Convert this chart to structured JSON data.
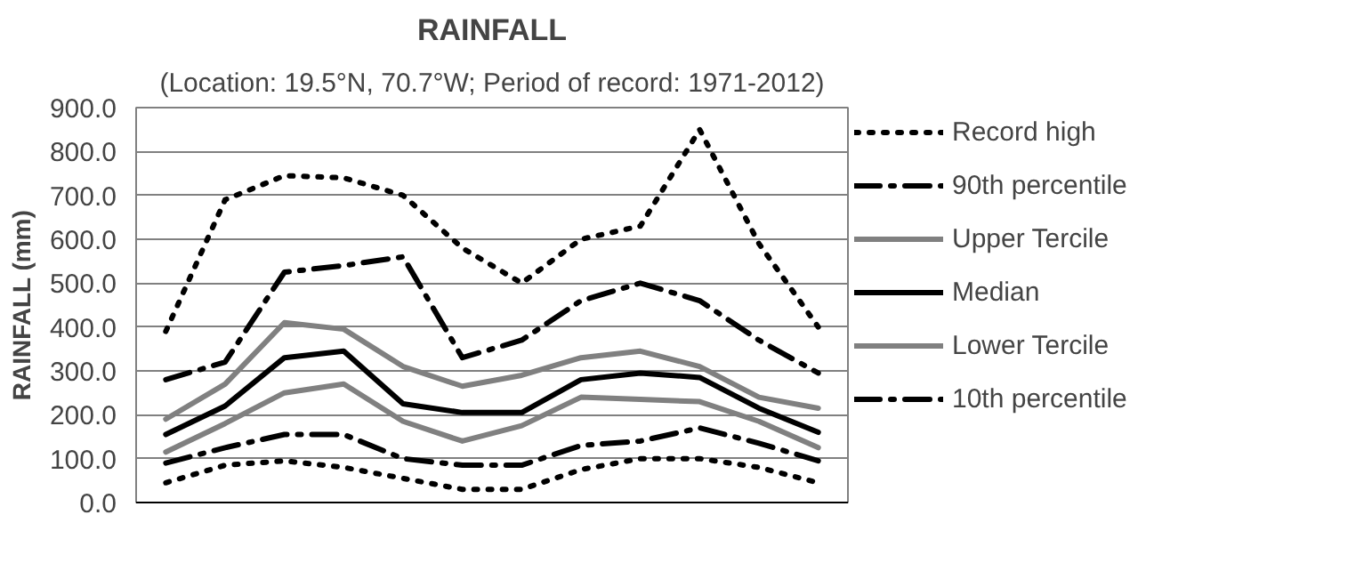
{
  "chart_data": {
    "type": "line",
    "title": "RAINFALL",
    "subtitle": "(Location: 19.5°N, 70.7°W; Period of record: 1971-2012)",
    "ylabel": "RAINFALL (mm)",
    "categories": [
      null,
      null,
      null,
      null,
      null,
      null,
      null,
      null,
      null,
      null,
      null,
      null
    ],
    "ylim": [
      0,
      900
    ],
    "yticks": [
      {
        "value": 0,
        "label": "0.0"
      },
      {
        "value": 100,
        "label": "100.0"
      },
      {
        "value": 200,
        "label": "200.0"
      },
      {
        "value": 300,
        "label": "300.0"
      },
      {
        "value": 400,
        "label": "400.0"
      },
      {
        "value": 500,
        "label": "500.0"
      },
      {
        "value": 600,
        "label": "600.0"
      },
      {
        "value": 700,
        "label": "700.0"
      },
      {
        "value": 800,
        "label": "800.0"
      },
      {
        "value": 900,
        "label": "900.0"
      }
    ],
    "grid": "y",
    "legend": "right",
    "tick_labels": "y",
    "marker": "none",
    "series": [
      {
        "name": "Record high",
        "color": "#000000",
        "line_style": "dotted",
        "values": [
          390,
          690,
          745,
          740,
          700,
          580,
          500,
          600,
          630,
          850,
          590,
          400
        ]
      },
      {
        "name": "90th percentile",
        "color": "#000000",
        "line_style": "dashdot",
        "values": [
          280,
          320,
          525,
          540,
          560,
          330,
          370,
          460,
          500,
          460,
          370,
          295
        ]
      },
      {
        "name": "Upper Tercile",
        "color": "#808080",
        "line_style": "solid",
        "values": [
          190,
          270,
          410,
          395,
          310,
          265,
          290,
          330,
          345,
          310,
          240,
          215
        ]
      },
      {
        "name": "Median",
        "color": "#000000",
        "line_style": "solid",
        "values": [
          155,
          220,
          330,
          345,
          225,
          205,
          205,
          280,
          295,
          285,
          215,
          160
        ]
      },
      {
        "name": "Lower Tercile",
        "color": "#808080",
        "line_style": "solid",
        "values": [
          115,
          180,
          250,
          270,
          185,
          140,
          175,
          240,
          235,
          230,
          185,
          125
        ]
      },
      {
        "name": "10th percentile",
        "color": "#000000",
        "line_style": "dashdot",
        "values": [
          90,
          125,
          155,
          155,
          100,
          85,
          85,
          130,
          140,
          170,
          135,
          95
        ]
      },
      {
        "color": "#000000",
        "line_style": "dotted",
        "values": [
          45,
          85,
          95,
          80,
          55,
          30,
          30,
          75,
          100,
          100,
          80,
          45
        ]
      }
    ]
  }
}
